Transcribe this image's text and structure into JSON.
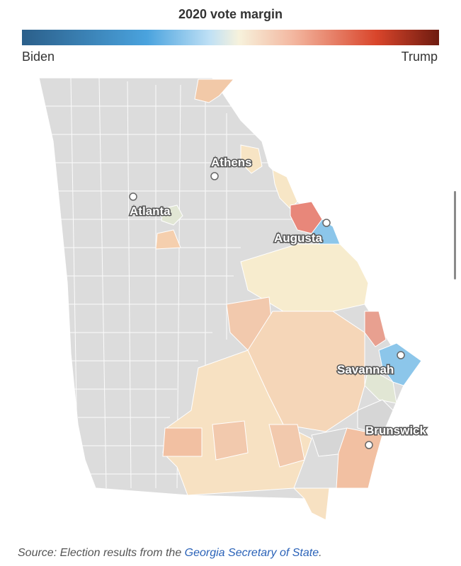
{
  "legend": {
    "title": "2020 vote margin",
    "left_label": "Biden",
    "right_label": "Trump",
    "gradient_colors": [
      "#2b5f8a",
      "#4aa3de",
      "#bfe0f5",
      "#f7f2dc",
      "#f3b7a0",
      "#d9452b",
      "#6e1b10"
    ]
  },
  "map": {
    "name": "Georgia",
    "no_data_color": "#dcdcdc",
    "cities": [
      {
        "name": "Athens",
        "marker": "circle"
      },
      {
        "name": "Atlanta",
        "marker": "circle"
      },
      {
        "name": "Augusta",
        "marker": "circle"
      },
      {
        "name": "Savannah",
        "marker": "circle"
      },
      {
        "name": "Brunswick",
        "marker": "circle"
      }
    ],
    "shaded_region_colors": {
      "strong_trump": "#e8877a",
      "lean_trump": "#f2c2a6",
      "slight_trump": "#f7e1c4",
      "neutral": "#f7eccd",
      "lean_biden": "#8cc6ea",
      "tossup_green": "#e1e6d4"
    }
  },
  "source": {
    "prefix": "Source: Election results from the ",
    "link": "Georgia Secretary of State",
    "suffix": "."
  }
}
